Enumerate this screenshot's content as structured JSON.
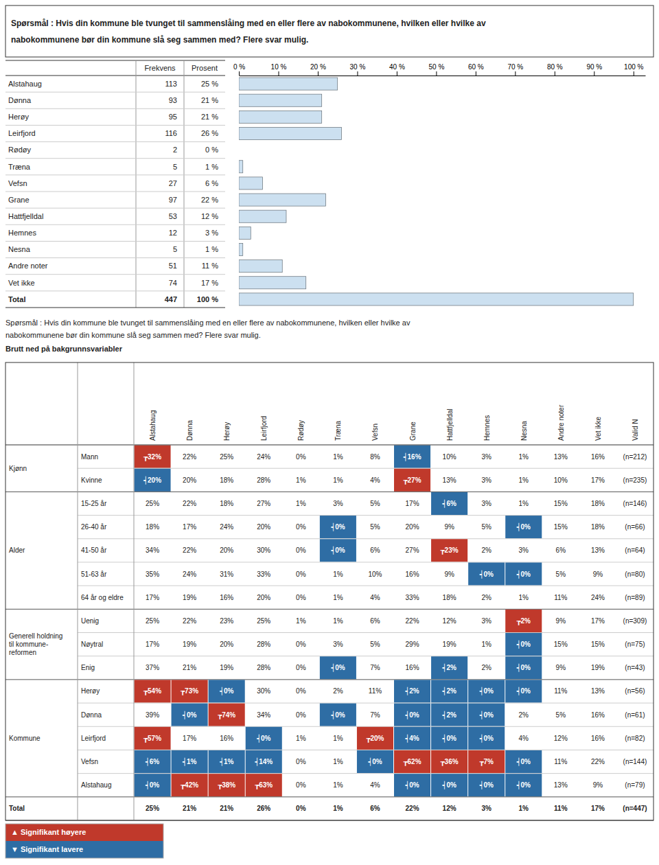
{
  "chart_data": [
    {
      "type": "bar",
      "orientation": "horizontal",
      "title": "Spørsmål : Hvis din kommune ble tvunget til sammenslåing med en eller flere av nabokommunene, hvilken eller hvilke av",
      "subtitle": "nabokommunene bør din kommune slå seg sammen med? Flere svar mulig.",
      "column_headers": [
        "Frekvens",
        "Prosent"
      ],
      "categories": [
        "Alstahaug",
        "Dønna",
        "Herøy",
        "Leirfjord",
        "Rødøy",
        "Træna",
        "Vefsn",
        "Grane",
        "Hattfjelldal",
        "Hemnes",
        "Nesna",
        "Andre noter",
        "Vet ikke",
        "Total"
      ],
      "frequencies": [
        113,
        93,
        95,
        116,
        2,
        5,
        27,
        97,
        53,
        12,
        5,
        51,
        74,
        447
      ],
      "values": [
        25,
        21,
        21,
        26,
        0,
        1,
        6,
        22,
        12,
        3,
        1,
        11,
        17,
        100
      ],
      "value_labels": [
        "25 %",
        "21 %",
        "21 %",
        "26 %",
        "0 %",
        "1 %",
        "6 %",
        "22 %",
        "12 %",
        "3 %",
        "1 %",
        "11 %",
        "17 %",
        "100 %"
      ],
      "data_labels": true,
      "color": "#cce0f0",
      "xlim": [
        0,
        103
      ],
      "xticks": [
        {
          "value": 0,
          "label": "0 %"
        },
        {
          "value": 10,
          "label": "10 %"
        },
        {
          "value": 20,
          "label": "20 %"
        },
        {
          "value": 30,
          "label": "30 %"
        },
        {
          "value": 40,
          "label": "40 %"
        },
        {
          "value": 50,
          "label": "50 %"
        },
        {
          "value": 60,
          "label": "60 %"
        },
        {
          "value": 70,
          "label": "70 %"
        },
        {
          "value": 80,
          "label": "80 %"
        },
        {
          "value": 90,
          "label": "90 %"
        },
        {
          "value": 100,
          "label": "100 %"
        }
      ],
      "grid": false
    },
    {
      "type": "table",
      "title": "Spørsmål : Hvis din kommune ble tvunget til sammenslåing med en eller flere av nabokommunene, hvilken eller hvilke av",
      "subtitle": "nabokommunene bør din kommune slå seg sammen med? Flere svar mulig.",
      "annotations": [
        "Brutt ned på bakgrunnsvariabler"
      ],
      "columns": [
        "Alstahaug",
        "Dønna",
        "Herøy",
        "Leirfjord",
        "Rødøy",
        "Træna",
        "Vefsn",
        "Grane",
        "Hattfjelldal",
        "Hemnes",
        "Nesna",
        "Andre noter",
        "Vet ikke",
        "Valid N"
      ],
      "row_groups": [
        {
          "group": "Kjønn",
          "rows": [
            {
              "label": "Mann",
              "values": [
                "┲32%",
                "22%",
                "25%",
                "24%",
                "0%",
                "1%",
                "8%",
                "┥16%",
                "10%",
                "3%",
                "1%",
                "13%",
                "16%",
                "(n=212)"
              ],
              "colors": [
                "#c0392b",
                null,
                null,
                null,
                null,
                null,
                null,
                "#2e6da4",
                null,
                null,
                null,
                null,
                null,
                null
              ]
            },
            {
              "label": "Kvinne",
              "values": [
                "┥20%",
                "20%",
                "18%",
                "28%",
                "1%",
                "1%",
                "4%",
                "┲27%",
                "13%",
                "3%",
                "1%",
                "10%",
                "17%",
                "(n=235)"
              ],
              "colors": [
                "#2e6da4",
                null,
                null,
                null,
                null,
                null,
                null,
                "#c0392b",
                null,
                null,
                null,
                null,
                null,
                null
              ]
            }
          ]
        },
        {
          "group": "Alder",
          "rows": [
            {
              "label": "15-25 år",
              "values": [
                "25%",
                "22%",
                "18%",
                "27%",
                "1%",
                "3%",
                "5%",
                "17%",
                "┥6%",
                "3%",
                "1%",
                "15%",
                "18%",
                "(n=146)"
              ],
              "colors": [
                null,
                null,
                null,
                null,
                null,
                null,
                null,
                null,
                "#2e6da4",
                null,
                null,
                null,
                null,
                null
              ]
            },
            {
              "label": "26-40 år",
              "values": [
                "18%",
                "17%",
                "24%",
                "20%",
                "0%",
                "┥0%",
                "5%",
                "20%",
                "9%",
                "5%",
                "┥0%",
                "15%",
                "18%",
                "(n=66)"
              ],
              "colors": [
                null,
                null,
                null,
                null,
                null,
                "#2e6da4",
                null,
                null,
                null,
                null,
                "#2e6da4",
                null,
                null,
                null
              ]
            },
            {
              "label": "41-50 år",
              "values": [
                "34%",
                "22%",
                "20%",
                "30%",
                "0%",
                "┥0%",
                "6%",
                "27%",
                "┲23%",
                "2%",
                "3%",
                "6%",
                "13%",
                "(n=64)"
              ],
              "colors": [
                null,
                null,
                null,
                null,
                null,
                "#2e6da4",
                null,
                null,
                "#c0392b",
                null,
                null,
                null,
                null,
                null
              ]
            },
            {
              "label": "51-63 år",
              "values": [
                "35%",
                "24%",
                "31%",
                "33%",
                "0%",
                "1%",
                "10%",
                "16%",
                "9%",
                "┥0%",
                "┥0%",
                "5%",
                "9%",
                "(n=80)"
              ],
              "colors": [
                null,
                null,
                null,
                null,
                null,
                null,
                null,
                null,
                null,
                "#2e6da4",
                "#2e6da4",
                null,
                null,
                null
              ]
            },
            {
              "label": "64 år og eldre",
              "values": [
                "17%",
                "19%",
                "16%",
                "20%",
                "0%",
                "1%",
                "4%",
                "33%",
                "18%",
                "2%",
                "1%",
                "11%",
                "24%",
                "(n=89)"
              ],
              "colors": [
                null,
                null,
                null,
                null,
                null,
                null,
                null,
                null,
                null,
                null,
                null,
                null,
                null,
                null
              ]
            }
          ]
        },
        {
          "group": "Generell holdning\ntil kommune-\nreformen",
          "rows": [
            {
              "label": "Uenig",
              "values": [
                "25%",
                "22%",
                "23%",
                "25%",
                "1%",
                "1%",
                "6%",
                "22%",
                "12%",
                "3%",
                "┲2%",
                "9%",
                "17%",
                "(n=309)"
              ],
              "colors": [
                null,
                null,
                null,
                null,
                null,
                null,
                null,
                null,
                null,
                null,
                "#c0392b",
                null,
                null,
                null
              ]
            },
            {
              "label": "Nøytral",
              "values": [
                "17%",
                "19%",
                "20%",
                "28%",
                "0%",
                "3%",
                "5%",
                "29%",
                "19%",
                "1%",
                "┥0%",
                "15%",
                "15%",
                "(n=75)"
              ],
              "colors": [
                null,
                null,
                null,
                null,
                null,
                null,
                null,
                null,
                null,
                null,
                "#2e6da4",
                null,
                null,
                null
              ]
            },
            {
              "label": "Enig",
              "values": [
                "37%",
                "21%",
                "19%",
                "28%",
                "0%",
                "┥0%",
                "7%",
                "16%",
                "┥2%",
                "2%",
                "┥0%",
                "9%",
                "19%",
                "(n=43)"
              ],
              "colors": [
                null,
                null,
                null,
                null,
                null,
                "#2e6da4",
                null,
                null,
                "#2e6da4",
                null,
                "#2e6da4",
                null,
                null,
                null
              ]
            }
          ]
        },
        {
          "group": "Kommune",
          "rows": [
            {
              "label": "Herøy",
              "values": [
                "┲54%",
                "┲73%",
                "┥0%",
                "30%",
                "0%",
                "2%",
                "11%",
                "┥2%",
                "┥2%",
                "┥0%",
                "┥0%",
                "11%",
                "13%",
                "(n=56)"
              ],
              "colors": [
                "#c0392b",
                "#c0392b",
                "#2e6da4",
                null,
                null,
                null,
                null,
                "#2e6da4",
                "#2e6da4",
                "#2e6da4",
                "#2e6da4",
                null,
                null,
                null
              ]
            },
            {
              "label": "Dønna",
              "values": [
                "39%",
                "┥0%",
                "┲74%",
                "34%",
                "0%",
                "┥0%",
                "7%",
                "┥0%",
                "┥2%",
                "┥0%",
                "2%",
                "5%",
                "16%",
                "(n=61)"
              ],
              "colors": [
                null,
                "#2e6da4",
                "#c0392b",
                null,
                null,
                "#2e6da4",
                null,
                "#2e6da4",
                "#2e6da4",
                "#2e6da4",
                null,
                null,
                null,
                null
              ]
            },
            {
              "label": "Leirfjord",
              "values": [
                "┲57%",
                "17%",
                "16%",
                "┥0%",
                "1%",
                "1%",
                "┲20%",
                "┥4%",
                "┥0%",
                "┥0%",
                "4%",
                "12%",
                "16%",
                "(n=82)"
              ],
              "colors": [
                "#c0392b",
                null,
                null,
                "#2e6da4",
                null,
                null,
                "#c0392b",
                "#2e6da4",
                "#2e6da4",
                "#2e6da4",
                null,
                null,
                null,
                null
              ]
            },
            {
              "label": "Vefsn",
              "values": [
                "┥6%",
                "┥1%",
                "┥1%",
                "┥14%",
                "0%",
                "1%",
                "┥0%",
                "┲62%",
                "┲36%",
                "┲7%",
                "┥0%",
                "11%",
                "22%",
                "(n=144)"
              ],
              "colors": [
                "#2e6da4",
                "#2e6da4",
                "#2e6da4",
                "#2e6da4",
                null,
                null,
                "#2e6da4",
                "#c0392b",
                "#c0392b",
                "#c0392b",
                "#2e6da4",
                null,
                null,
                null
              ]
            },
            {
              "label": "Alstahaug",
              "values": [
                "┥0%",
                "┲42%",
                "┲38%",
                "┲63%",
                "0%",
                "1%",
                "4%",
                "┥0%",
                "┥0%",
                "┥0%",
                "┥0%",
                "13%",
                "9%",
                "(n=79)"
              ],
              "colors": [
                "#2e6da4",
                "#c0392b",
                "#c0392b",
                "#c0392b",
                null,
                null,
                null,
                "#2e6da4",
                "#2e6da4",
                "#2e6da4",
                "#2e6da4",
                null,
                null,
                null
              ]
            }
          ]
        }
      ],
      "total_row": {
        "label": "Total",
        "values": [
          "25%",
          "21%",
          "21%",
          "26%",
          "0%",
          "1%",
          "6%",
          "22%",
          "12%",
          "3%",
          "1%",
          "11%",
          "17%",
          "(n=447)"
        ]
      },
      "key": [
        {
          "label": "▲ Signifikant høyere",
          "color": "#c0392b"
        },
        {
          "label": "▼ Signifikant lavere",
          "color": "#2e6da4"
        }
      ]
    }
  ]
}
